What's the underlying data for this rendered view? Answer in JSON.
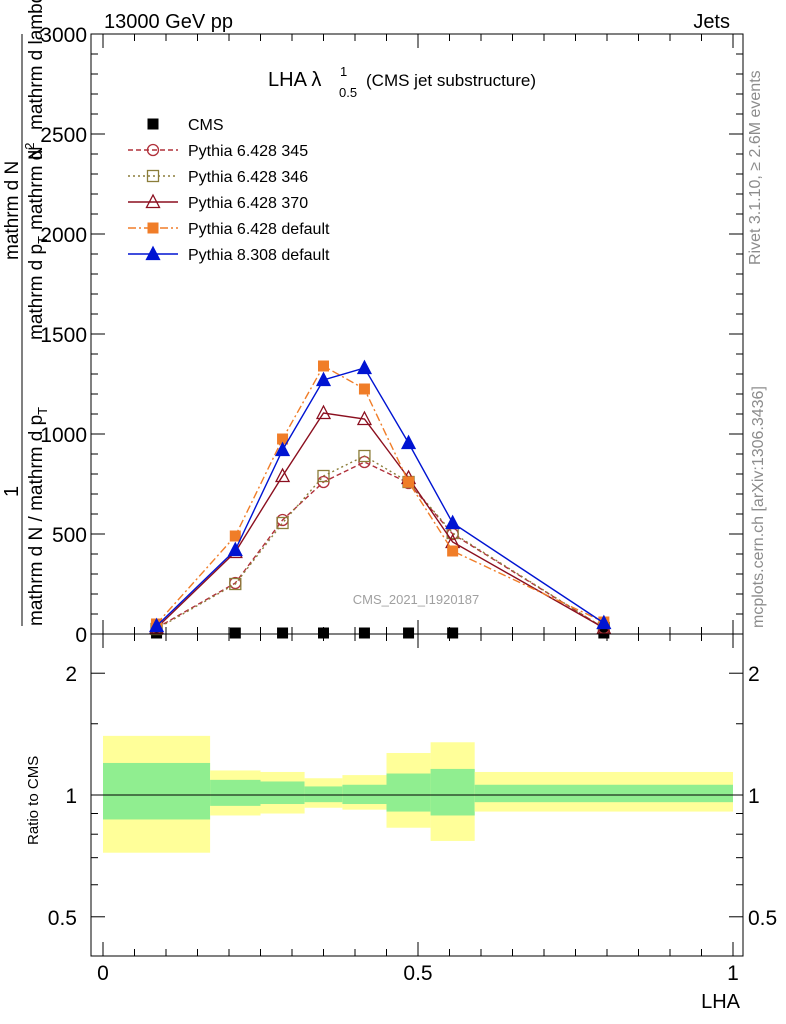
{
  "header": {
    "left": "13000 GeV pp",
    "right": "Jets"
  },
  "side_labels": {
    "rivet": "Rivet 3.1.10, ≥ 2.6M events",
    "mcplots": "mcplots.cern.ch [arXiv:1306.3436]"
  },
  "chart_data": [
    {
      "type": "line",
      "title_main": "LHA λ",
      "title_sup": "1",
      "title_sub": "0.5",
      "title_extra": "(CMS jet substructure)",
      "ylabel_top": "1",
      "ylabel_mid1": "mathrm d N / mathrm d p",
      "ylabel_mid1_sub": "T",
      "ylabel_mid2": "mathrm d p",
      "ylabel_mid2_sub": "T",
      "ylabel_mid3": "mathrm d N",
      "ylabel_bot1": "mathrm d",
      "ylabel_bot1_sup": "2",
      "ylabel_bot2": "N",
      "ylabel_bot3": "mathrm d lambda",
      "ylim": [
        0,
        3000
      ],
      "yticks": [
        "0",
        "500",
        "1000",
        "1500",
        "2000",
        "2500",
        "3000"
      ],
      "watermark": "CMS_2021_I1920187",
      "legend_position": "top-left",
      "x": [
        0.085,
        0.21,
        0.285,
        0.35,
        0.415,
        0.485,
        0.555,
        0.795
      ],
      "series": [
        {
          "name": "CMS",
          "color": "#000000",
          "dash": "",
          "marker": "square-filled",
          "values": [
            0,
            0,
            0,
            0,
            0,
            0,
            0,
            0
          ]
        },
        {
          "name": "Pythia 6.428 345",
          "color": "#b0303a",
          "dash": "5,3",
          "marker": "circle-open",
          "values": [
            30,
            255,
            570,
            760,
            860,
            755,
            500,
            30
          ]
        },
        {
          "name": "Pythia 6.428 346",
          "color": "#8b7d3a",
          "dash": "2,3",
          "marker": "square-open",
          "values": [
            25,
            250,
            555,
            790,
            890,
            760,
            505,
            30
          ]
        },
        {
          "name": "Pythia 6.428 370",
          "color": "#8b0f1f",
          "dash": "",
          "marker": "triangle-open",
          "values": [
            30,
            410,
            790,
            1105,
            1075,
            780,
            460,
            30
          ]
        },
        {
          "name": "Pythia 6.428 default",
          "color": "#f07d28",
          "dash": "8,3,2,3",
          "marker": "square-filled",
          "values": [
            50,
            490,
            975,
            1340,
            1225,
            760,
            415,
            60
          ]
        },
        {
          "name": "Pythia 8.308 default",
          "color": "#0014d2",
          "dash": "",
          "marker": "triangle-filled",
          "values": [
            40,
            420,
            920,
            1270,
            1330,
            955,
            555,
            55
          ]
        }
      ]
    },
    {
      "type": "area",
      "ylabel": "Ratio to CMS",
      "xlabel": "LHA",
      "xlim": [
        0,
        1
      ],
      "xticks": [
        "0",
        "0.5",
        "1"
      ],
      "yscale": "log",
      "ylim": [
        0.4,
        2.5
      ],
      "yticks": [
        "0.5",
        "1",
        "2"
      ],
      "reference": 1,
      "bins": [
        {
          "x0": 0.0,
          "x1": 0.17,
          "inner": [
            0.87,
            1.2
          ],
          "outer": [
            0.72,
            1.4
          ]
        },
        {
          "x0": 0.17,
          "x1": 0.25,
          "inner": [
            0.94,
            1.09
          ],
          "outer": [
            0.89,
            1.15
          ]
        },
        {
          "x0": 0.25,
          "x1": 0.32,
          "inner": [
            0.95,
            1.08
          ],
          "outer": [
            0.9,
            1.14
          ]
        },
        {
          "x0": 0.32,
          "x1": 0.38,
          "inner": [
            0.96,
            1.05
          ],
          "outer": [
            0.93,
            1.1
          ]
        },
        {
          "x0": 0.38,
          "x1": 0.45,
          "inner": [
            0.95,
            1.06
          ],
          "outer": [
            0.92,
            1.12
          ]
        },
        {
          "x0": 0.45,
          "x1": 0.52,
          "inner": [
            0.91,
            1.13
          ],
          "outer": [
            0.83,
            1.27
          ]
        },
        {
          "x0": 0.52,
          "x1": 0.59,
          "inner": [
            0.89,
            1.16
          ],
          "outer": [
            0.77,
            1.35
          ]
        },
        {
          "x0": 0.59,
          "x1": 1.0,
          "inner": [
            0.96,
            1.06
          ],
          "outer": [
            0.91,
            1.14
          ]
        }
      ],
      "colors": {
        "inner": "#90ee90",
        "outer": "#ffff99"
      }
    }
  ]
}
